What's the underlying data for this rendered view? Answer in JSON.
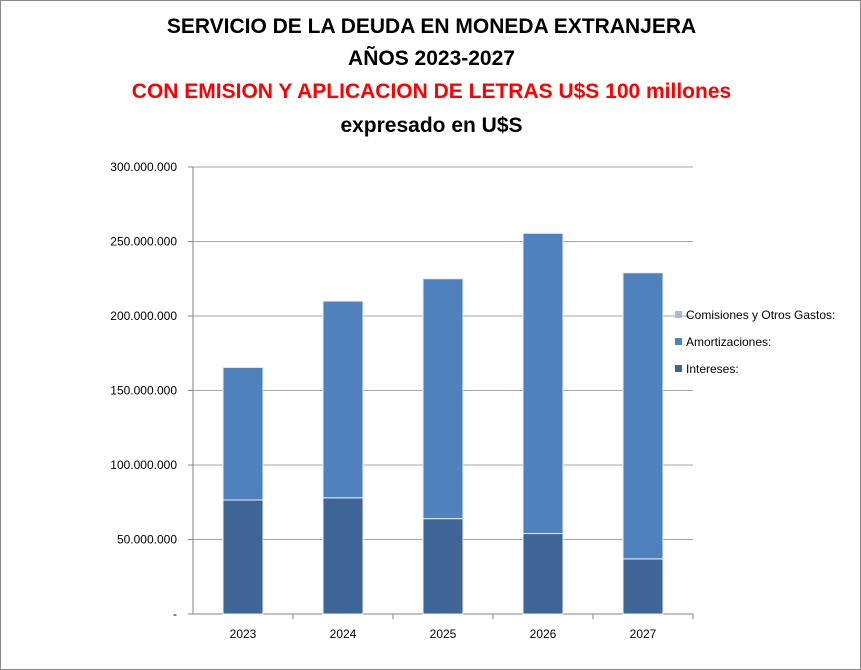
{
  "chart_data": {
    "type": "bar",
    "stacked": true,
    "title": [
      "SERVICIO DE LA DEUDA  EN MONEDA EXTRANJERA",
      "AÑOS 2023-2027"
    ],
    "subtitle": "CON EMISION Y APLICACION DE LETRAS U$S 100 millones",
    "subtitle2": "expresado en U$S",
    "categories": [
      "2023",
      "2024",
      "2025",
      "2026",
      "2027"
    ],
    "series": [
      {
        "name": "Intereses:",
        "color": "#3d6696",
        "values": [
          76500000,
          78000000,
          64000000,
          54000000,
          37000000
        ]
      },
      {
        "name": "Amortizaciones:",
        "color": "#4f81bd",
        "values": [
          89000000,
          132000000,
          161000000,
          201500000,
          192000000
        ]
      },
      {
        "name": "Comisiones y Otros Gastos:",
        "color": "#aab9d9",
        "values": [
          0,
          0,
          0,
          0,
          0
        ]
      }
    ],
    "ylim": [
      0,
      300000000
    ],
    "yticks": [
      0,
      50000000,
      100000000,
      150000000,
      200000000,
      250000000,
      300000000
    ],
    "ytick_labels": [
      "-",
      "50.000.000",
      "100.000.000",
      "150.000.000",
      "200.000.000",
      "250.000.000",
      "300.000.000"
    ],
    "grid": true,
    "legend_position": "right",
    "title_color": "#000000",
    "subtitle_color": "#ff0000"
  }
}
